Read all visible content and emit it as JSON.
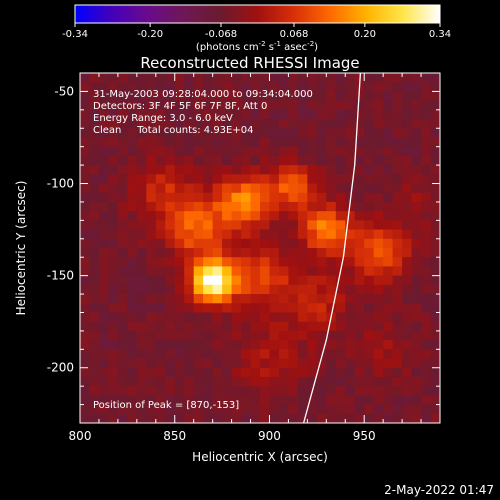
{
  "colorbar": {
    "ticks": [
      "-0.34",
      "-0.20",
      "-0.068",
      "0.068",
      "0.20",
      "0.34"
    ],
    "tick_values": [
      -0.34,
      -0.2,
      -0.068,
      0.068,
      0.2,
      0.34
    ],
    "range": [
      -0.34,
      0.34
    ],
    "units_main": "(photons cm",
    "units_sup1": "-2",
    "units_mid": " s",
    "units_sup2": "-1",
    "units_end": " asec",
    "units_sup3": "-2",
    "units_close": ")",
    "colormap": [
      "#0000ff",
      "#4400bb",
      "#6a0b8c",
      "#6e1855",
      "#6c1a2e",
      "#a01010",
      "#d83008",
      "#ff6a00",
      "#ffb400",
      "#ffe64a",
      "#ffffff"
    ]
  },
  "title": "Reconstructed RHESSI Image",
  "info": {
    "line1": "31-May-2003 09:28:04.000 to 09:34:04.000",
    "line2": "Detectors: 3F 4F 5F 6F 7F 8F, Att 0",
    "line3": "Energy Range: 3.0 - 6.0 keV",
    "line4": "Clean     Total counts: 4.93E+04",
    "peak": "Position of Peak = [870,-153]"
  },
  "footer": {
    "timestamp": "2-May-2022 01:47"
  },
  "chart_data": {
    "type": "heatmap",
    "title": "Reconstructed RHESSI Image",
    "xlabel": "Heliocentric X (arcsec)",
    "ylabel": "Heliocentric Y (arcsec)",
    "xlim": [
      800,
      990
    ],
    "ylim": [
      -230,
      -40
    ],
    "xticks": [
      800,
      850,
      900,
      950
    ],
    "xtick_labels": [
      "800",
      "850",
      "900",
      "950"
    ],
    "yticks": [
      -50,
      -100,
      -150,
      -200
    ],
    "ytick_labels": [
      "-50",
      "-100",
      "-150",
      "-200"
    ],
    "peak": [
      870,
      -153
    ],
    "value_range": [
      -0.34,
      0.34
    ],
    "background_level": -0.06,
    "sources": [
      {
        "x": 870,
        "y": -153,
        "amp": 0.42,
        "sigma": 8
      },
      {
        "x": 886,
        "y": -110,
        "amp": 0.22,
        "sigma": 10
      },
      {
        "x": 912,
        "y": -102,
        "amp": 0.17,
        "sigma": 9
      },
      {
        "x": 930,
        "y": -125,
        "amp": 0.22,
        "sigma": 9
      },
      {
        "x": 862,
        "y": -125,
        "amp": 0.18,
        "sigma": 11
      },
      {
        "x": 958,
        "y": -137,
        "amp": 0.17,
        "sigma": 11
      },
      {
        "x": 895,
        "y": -150,
        "amp": 0.15,
        "sigma": 12
      },
      {
        "x": 845,
        "y": -105,
        "amp": 0.11,
        "sigma": 12
      },
      {
        "x": 900,
        "y": -195,
        "amp": 0.07,
        "sigma": 14
      },
      {
        "x": 925,
        "y": -165,
        "amp": 0.1,
        "sigma": 12
      },
      {
        "x": 960,
        "y": -190,
        "amp": 0.05,
        "sigma": 12
      },
      {
        "x": 980,
        "y": -110,
        "amp": 0.05,
        "sigma": 9
      }
    ],
    "limb_curve": [
      {
        "x": 918,
        "y": -230
      },
      {
        "x": 930,
        "y": -185
      },
      {
        "x": 939,
        "y": -140
      },
      {
        "x": 945,
        "y": -90
      },
      {
        "x": 948,
        "y": -40
      }
    ]
  }
}
